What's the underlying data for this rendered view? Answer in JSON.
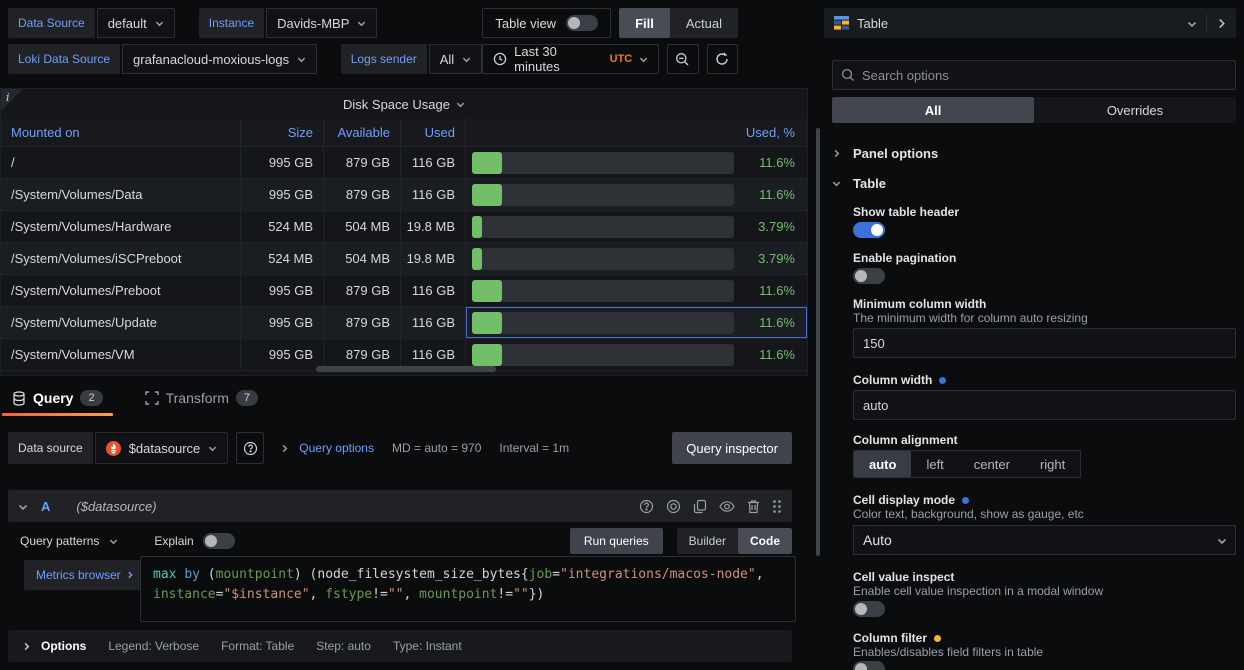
{
  "toolbar": {
    "row1": {
      "data_source_label": "Data Source",
      "data_source_value": "default",
      "instance_label": "Instance",
      "instance_value": "Davids-MBP",
      "table_view_label": "Table view",
      "fill_label": "Fill",
      "actual_label": "Actual"
    },
    "row2": {
      "loki_label": "Loki Data Source",
      "loki_value": "grafanacloud-moxious-logs",
      "logs_sender_label": "Logs sender",
      "logs_sender_value": "All",
      "time_range": "Last 30 minutes",
      "timezone": "UTC"
    }
  },
  "panel": {
    "title": "Disk Space Usage",
    "info_corner": "i",
    "columns": [
      "Mounted on",
      "Size",
      "Available",
      "Used",
      "Used, %"
    ],
    "rows": [
      {
        "mount": "/",
        "size": "995 GB",
        "available": "879 GB",
        "used": "116 GB",
        "pct": "11.6%",
        "pct_value": 11.6,
        "highlight": false
      },
      {
        "mount": "/System/Volumes/Data",
        "size": "995 GB",
        "available": "879 GB",
        "used": "116 GB",
        "pct": "11.6%",
        "pct_value": 11.6,
        "highlight": false
      },
      {
        "mount": "/System/Volumes/Hardware",
        "size": "524 MB",
        "available": "504 MB",
        "used": "19.8 MB",
        "pct": "3.79%",
        "pct_value": 3.79,
        "highlight": false
      },
      {
        "mount": "/System/Volumes/iSCPreboot",
        "size": "524 MB",
        "available": "504 MB",
        "used": "19.8 MB",
        "pct": "3.79%",
        "pct_value": 3.79,
        "highlight": false
      },
      {
        "mount": "/System/Volumes/Preboot",
        "size": "995 GB",
        "available": "879 GB",
        "used": "116 GB",
        "pct": "11.6%",
        "pct_value": 11.6,
        "highlight": false
      },
      {
        "mount": "/System/Volumes/Update",
        "size": "995 GB",
        "available": "879 GB",
        "used": "116 GB",
        "pct": "11.6%",
        "pct_value": 11.6,
        "highlight": true
      },
      {
        "mount": "/System/Volumes/VM",
        "size": "995 GB",
        "available": "879 GB",
        "used": "116 GB",
        "pct": "11.6%",
        "pct_value": 11.6,
        "highlight": false
      }
    ]
  },
  "tabs": {
    "query_label": "Query",
    "query_count": "2",
    "transform_label": "Transform",
    "transform_count": "7"
  },
  "query_bar": {
    "data_source_label": "Data source",
    "datasource_value": "$datasource",
    "query_options_label": "Query options",
    "md_text": "MD = auto = 970",
    "interval_text": "Interval = 1m",
    "query_inspector_label": "Query inspector"
  },
  "query_row": {
    "ref_id": "A",
    "datasource_hint": "($datasource)"
  },
  "editor_toolbar": {
    "query_patterns_label": "Query patterns",
    "explain_label": "Explain",
    "run_queries_label": "Run queries",
    "builder_label": "Builder",
    "code_label": "Code"
  },
  "editor": {
    "metrics_browser_label": "Metrics browser",
    "lines": [
      [
        {
          "text": "max",
          "type": "func"
        },
        {
          "text": " ",
          "type": "plain"
        },
        {
          "text": "by",
          "type": "keyword"
        },
        {
          "text": " (",
          "type": "plain"
        },
        {
          "text": "mountpoint",
          "type": "label"
        },
        {
          "text": ") (node_filesystem_size_bytes{",
          "type": "plain"
        },
        {
          "text": "job",
          "type": "label"
        },
        {
          "text": "=",
          "type": "plain"
        },
        {
          "text": "\"integrations/macos-node\"",
          "type": "string"
        },
        {
          "text": ",",
          "type": "plain"
        }
      ],
      [
        {
          "text": "instance",
          "type": "label"
        },
        {
          "text": "=",
          "type": "plain"
        },
        {
          "text": "\"$instance\"",
          "type": "string"
        },
        {
          "text": ", ",
          "type": "plain"
        },
        {
          "text": "fstype",
          "type": "label"
        },
        {
          "text": "!=",
          "type": "plain"
        },
        {
          "text": "\"\"",
          "type": "string"
        },
        {
          "text": ", ",
          "type": "plain"
        },
        {
          "text": "mountpoint",
          "type": "label"
        },
        {
          "text": "!=",
          "type": "plain"
        },
        {
          "text": "\"\"",
          "type": "string"
        },
        {
          "text": "})",
          "type": "plain"
        }
      ]
    ]
  },
  "options_footer": {
    "options_label": "Options",
    "legend": "Legend: Verbose",
    "format": "Format: Table",
    "step": "Step: auto",
    "type": "Type: Instant"
  },
  "sidebar": {
    "header_title": "Table",
    "search_placeholder": "Search options",
    "tabs": {
      "all": "All",
      "overrides": "Overrides",
      "selected": "All"
    },
    "panel_options_label": "Panel options",
    "table_section_label": "Table",
    "fields": {
      "show_table_header": {
        "label": "Show table header",
        "value": true
      },
      "enable_pagination": {
        "label": "Enable pagination",
        "value": false
      },
      "min_column_width": {
        "label": "Minimum column width",
        "description": "The minimum width for column auto resizing",
        "value": "150"
      },
      "column_width": {
        "label": "Column width",
        "value": "auto"
      },
      "column_alignment": {
        "label": "Column alignment",
        "options": [
          "auto",
          "left",
          "center",
          "right"
        ],
        "selected": "auto"
      },
      "cell_display_mode": {
        "label": "Cell display mode",
        "description": "Color text, background, show as gauge, etc",
        "value": "Auto"
      },
      "cell_value_inspect": {
        "label": "Cell value inspect",
        "description": "Enable cell value inspection in a modal window",
        "value": false
      },
      "column_filter": {
        "label": "Column filter",
        "description": "Enables/disables field filters in table",
        "value": false
      }
    }
  },
  "colors": {
    "accent_blue": "#6e9fff",
    "green": "#73bf69",
    "orange": "#eb7b18"
  }
}
